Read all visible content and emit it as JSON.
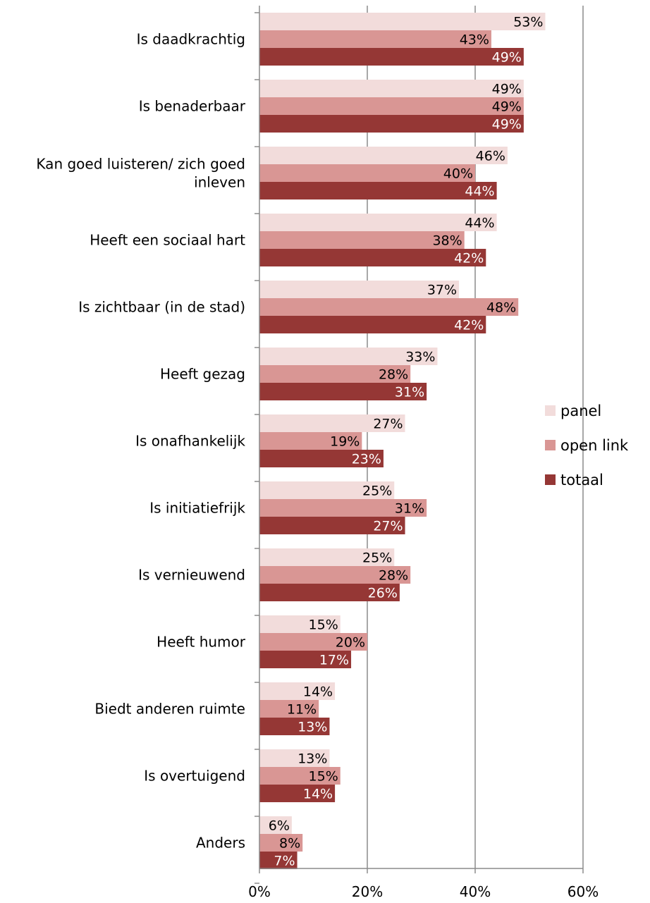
{
  "chart_data": {
    "type": "bar",
    "orientation": "horizontal",
    "categories": [
      [
        "Is daadkrachtig"
      ],
      [
        "Is benaderbaar"
      ],
      [
        "Kan goed luisteren/ zich goed",
        "inleven"
      ],
      [
        "Heeft een sociaal hart"
      ],
      [
        "Is zichtbaar (in de stad)"
      ],
      [
        "Heeft gezag"
      ],
      [
        "Is onafhankelijk"
      ],
      [
        "Is initiatiefrijk"
      ],
      [
        "Is vernieuwend"
      ],
      [
        "Heeft humor"
      ],
      [
        "Biedt anderen ruimte"
      ],
      [
        "Is overtuigend"
      ],
      [
        "Anders"
      ]
    ],
    "series": [
      {
        "name": "panel",
        "color": "#f2dcdb",
        "label_color": "#000000",
        "values": [
          53,
          49,
          46,
          44,
          37,
          33,
          27,
          25,
          25,
          15,
          14,
          13,
          6
        ],
        "labels": [
          "53%",
          "49%",
          "46%",
          "44%",
          "37%",
          "33%",
          "27%",
          "25%",
          "25%",
          "15%",
          "14%",
          "13%",
          "6%"
        ]
      },
      {
        "name": "open link",
        "color": "#d99694",
        "label_color": "#000000",
        "values": [
          43,
          49,
          40,
          38,
          48,
          28,
          19,
          31,
          28,
          20,
          11,
          15,
          8
        ],
        "labels": [
          "43%",
          "49%",
          "40%",
          "38%",
          "48%",
          "28%",
          "19%",
          "31%",
          "28%",
          "20%",
          "11%",
          "15%",
          "8%"
        ]
      },
      {
        "name": "totaal",
        "color": "#953735",
        "label_color": "#ffffff",
        "values": [
          49,
          49,
          44,
          42,
          42,
          31,
          23,
          27,
          26,
          17,
          13,
          14,
          7
        ],
        "labels": [
          "49%",
          "49%",
          "44%",
          "42%",
          "42%",
          "31%",
          "23%",
          "27%",
          "26%",
          "17%",
          "13%",
          "14%",
          "7%"
        ]
      }
    ],
    "x_ticks": [
      "0%",
      "20%",
      "40%",
      "60%"
    ],
    "xlim": [
      0,
      60
    ],
    "grid": true,
    "legend": "right"
  }
}
